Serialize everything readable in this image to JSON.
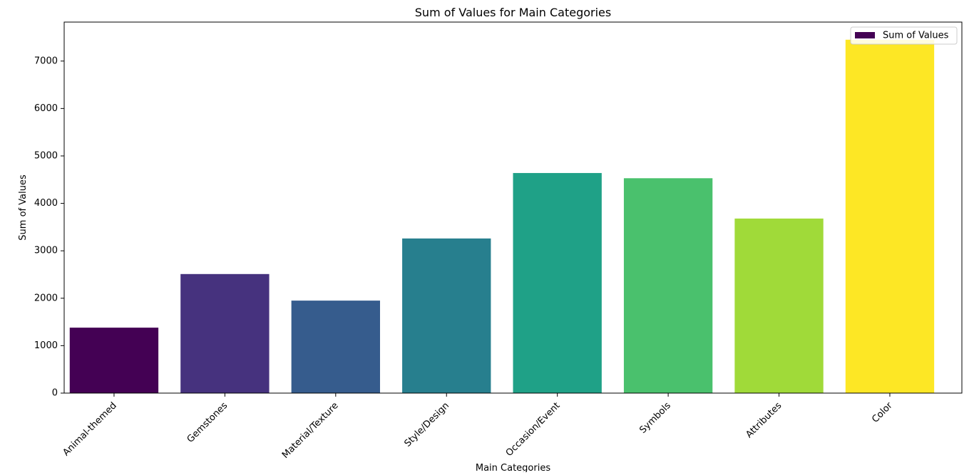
{
  "chart_data": {
    "type": "bar",
    "title": "Sum of Values for Main Categories",
    "xlabel": "Main Categories",
    "ylabel": "Sum of Values",
    "categories": [
      "Animal-themed",
      "Gemstones",
      "Material/Texture",
      "Style/Design",
      "Occasion/Event",
      "Symbols",
      "Attributes",
      "Color"
    ],
    "series": [
      {
        "name": "Sum of Values",
        "values": [
          1380,
          2510,
          1950,
          3260,
          4640,
          4530,
          3680,
          7450
        ],
        "colors": [
          "#440154",
          "#46327e",
          "#365c8d",
          "#277f8e",
          "#1fa187",
          "#4ac16d",
          "#a0da39",
          "#fde725"
        ]
      }
    ],
    "yticks": [
      0,
      1000,
      2000,
      3000,
      4000,
      5000,
      6000,
      7000
    ],
    "ylim": [
      0,
      7822
    ],
    "grid": false,
    "legend": {
      "position": "top-right",
      "entries": [
        "Sum of Values"
      ]
    }
  }
}
